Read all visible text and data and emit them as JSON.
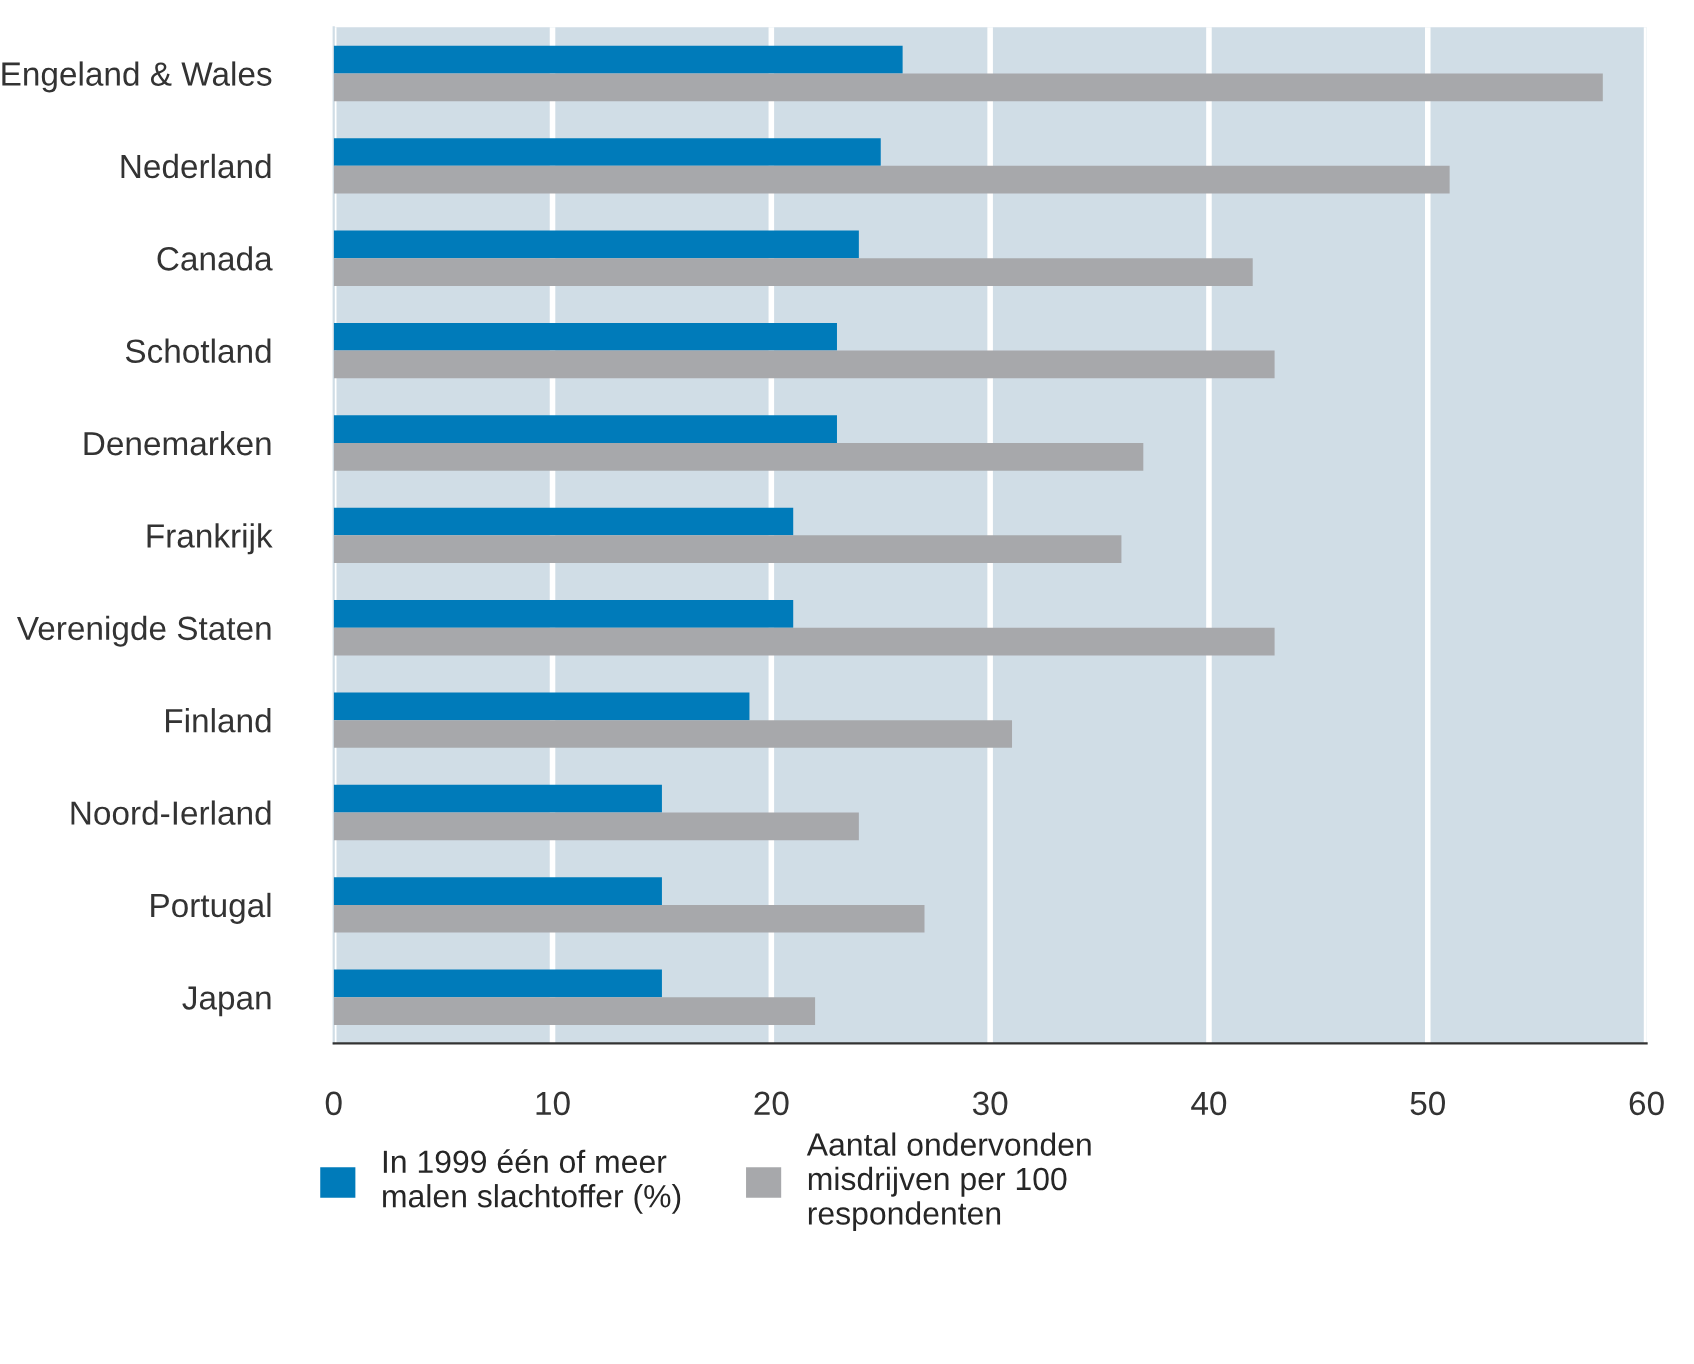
{
  "chart_data": {
    "type": "bar",
    "orientation": "horizontal",
    "categories": [
      "Engeland & Wales",
      "Nederland",
      "Canada",
      "Schotland",
      "Denemarken",
      "Frankrijk",
      "Verenigde Staten",
      "Finland",
      "Noord-Ierland",
      "Portugal",
      "Japan"
    ],
    "series": [
      {
        "name": "In 1999 één of meer\nmalen slachtoffer (%)",
        "color": "#007bba",
        "values": [
          26,
          25,
          24,
          23,
          23,
          21,
          21,
          19,
          15,
          15,
          15
        ]
      },
      {
        "name": "Aantal ondervonden\nmisdrijven per 100\nrespondenten",
        "color": "#a7a8ab",
        "values": [
          58,
          51,
          42,
          43,
          37,
          36,
          43,
          31,
          24,
          27,
          22
        ]
      }
    ],
    "xlim": [
      0,
      60
    ],
    "xticks": [
      0,
      10,
      20,
      30,
      40,
      50,
      60
    ],
    "grid": "x",
    "legend": "bottom"
  }
}
